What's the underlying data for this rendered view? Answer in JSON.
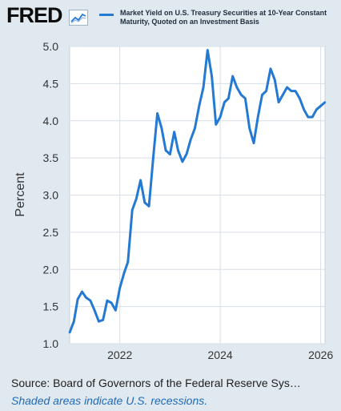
{
  "brand": {
    "logo_text": "FRED",
    "logo_icon": "fred-chart-icon"
  },
  "legend": {
    "series_label": "Market Yield on U.S. Treasury Securities at 10-Year Constant Maturity, Quoted on an Investment Basis",
    "color": "#2479d2"
  },
  "footer": {
    "source": "Source: Board of Governors of the Federal Reserve Sys…",
    "recession_note": "Shaded areas indicate U.S. recessions."
  },
  "chart_data": {
    "type": "line",
    "title": "",
    "xlabel": "",
    "ylabel": "Percent",
    "ylim": [
      1.0,
      5.0
    ],
    "y_ticks": [
      "1.0",
      "1.5",
      "2.0",
      "2.5",
      "3.0",
      "3.5",
      "4.0",
      "4.5",
      "5.0"
    ],
    "x_ticks": [
      "2022",
      "2024",
      "2026"
    ],
    "grid": true,
    "series": [
      {
        "name": "Market Yield on U.S. Treasury Securities at 10-Year Constant Maturity, Quoted on an Investment Basis",
        "color": "#2479d2",
        "x": [
          "2021-01",
          "2021-02",
          "2021-03",
          "2021-04",
          "2021-05",
          "2021-06",
          "2021-07",
          "2021-08",
          "2021-09",
          "2021-10",
          "2021-11",
          "2021-12",
          "2022-01",
          "2022-02",
          "2022-03",
          "2022-04",
          "2022-05",
          "2022-06",
          "2022-07",
          "2022-08",
          "2022-09",
          "2022-10",
          "2022-11",
          "2022-12",
          "2023-01",
          "2023-02",
          "2023-03",
          "2023-04",
          "2023-05",
          "2023-06",
          "2023-07",
          "2023-08",
          "2023-09",
          "2023-10",
          "2023-11",
          "2023-12",
          "2024-01",
          "2024-02",
          "2024-03",
          "2024-04",
          "2024-05",
          "2024-06",
          "2024-07",
          "2024-08",
          "2024-09",
          "2024-10",
          "2024-11",
          "2024-12",
          "2025-01",
          "2025-02",
          "2025-03",
          "2025-04",
          "2025-05",
          "2025-06",
          "2025-07",
          "2025-08",
          "2025-09",
          "2025-10",
          "2025-11",
          "2025-12",
          "2026-01",
          "2026-02"
        ],
        "values": [
          1.15,
          1.3,
          1.6,
          1.7,
          1.62,
          1.58,
          1.45,
          1.3,
          1.32,
          1.58,
          1.55,
          1.45,
          1.75,
          1.95,
          2.1,
          2.8,
          2.95,
          3.2,
          2.9,
          2.85,
          3.5,
          4.1,
          3.9,
          3.6,
          3.55,
          3.85,
          3.6,
          3.45,
          3.55,
          3.75,
          3.9,
          4.2,
          4.45,
          4.95,
          4.6,
          3.95,
          4.05,
          4.25,
          4.3,
          4.6,
          4.45,
          4.35,
          4.3,
          3.9,
          3.7,
          4.05,
          4.35,
          4.4,
          4.7,
          4.55,
          4.25,
          4.35,
          4.45,
          4.4,
          4.4,
          4.3,
          4.15,
          4.05,
          4.05,
          4.15,
          4.2,
          4.25
        ]
      }
    ]
  }
}
